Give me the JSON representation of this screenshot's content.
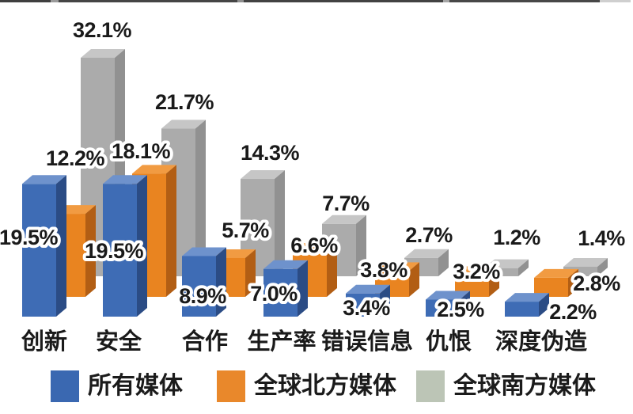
{
  "figure": {
    "background": "#ffffff",
    "top_edge_cropped_text": true
  },
  "chart_data": {
    "type": "bar",
    "variant": "3d-grouped-columns",
    "title": "",
    "xlabel": "",
    "ylabel": "",
    "value_unit": "%",
    "categories": [
      "创新",
      "安全",
      "合作",
      "生产率",
      "错误信息",
      "仇恨",
      "深度伪造"
    ],
    "series": [
      {
        "key": "all-media",
        "name": "所有媒体",
        "color": "#3E6CB5",
        "color_top": "#6E92CC",
        "color_side": "#2B4C85",
        "legend_color": "#3A68B1",
        "values": [
          19.5,
          19.5,
          8.9,
          7.0,
          3.4,
          2.5,
          2.2
        ],
        "labels": [
          "19.5%",
          "19.5%",
          "8.9%",
          "7.0%",
          "3.4%",
          "2.5%",
          "2.2%"
        ]
      },
      {
        "key": "global-north-media",
        "name": "全球北方媒体",
        "color": "#E98420",
        "color_top": "#F19B42",
        "color_side": "#B25E14",
        "legend_color": "#E9882B",
        "values": [
          12.2,
          18.1,
          5.7,
          6.6,
          3.8,
          3.2,
          2.8
        ],
        "labels": [
          "12.2%",
          "18.1%",
          "5.7%",
          "6.6%",
          "3.8%",
          "3.2%",
          "2.8%"
        ]
      },
      {
        "key": "global-south-media",
        "name": "全球南方媒体",
        "color": "#ABABAB",
        "color_top": "#C6C6C6",
        "color_side": "#919191",
        "legend_color": "#BCC5B6",
        "values": [
          32.1,
          21.7,
          14.3,
          7.7,
          2.7,
          1.2,
          1.4
        ],
        "labels": [
          "32.1%",
          "21.7%",
          "14.3%",
          "7.7%",
          "2.7%",
          "1.2%",
          "1.4%"
        ]
      }
    ],
    "ylim": [
      0,
      35
    ],
    "grid": false,
    "axes_visible": false,
    "legend_position": "bottom",
    "label_text_color": "#1a1a1a",
    "label_outline_color": "#ffffff"
  }
}
